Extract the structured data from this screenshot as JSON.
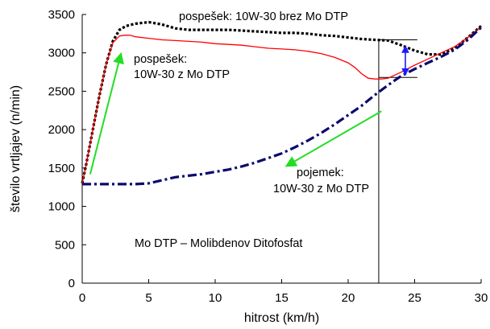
{
  "chart_data": {
    "type": "line",
    "title": "",
    "xlabel": "hitrost (km/h)",
    "ylabel": "število vrtljajev (n/min)",
    "xlim": [
      0,
      30
    ],
    "ylim": [
      0,
      3500
    ],
    "xticks": [
      0,
      5,
      10,
      15,
      20,
      25,
      30
    ],
    "yticks": [
      0,
      500,
      1000,
      1500,
      2000,
      2500,
      3000,
      3500
    ],
    "grid": false,
    "legend": "none",
    "series": [
      {
        "color": "#000000",
        "style": "dotted",
        "x": [
          0,
          0.3,
          0.8,
          1.3,
          1.8,
          2.3,
          2.8,
          3.3,
          4.0,
          5.0,
          6.0,
          7.0,
          8.0,
          9.0,
          10.0,
          11.0,
          12.0,
          13.0,
          14.0,
          15.0,
          16.0,
          17.0,
          18.0,
          19.0,
          20.0,
          21.0,
          22.0,
          23.0,
          24.0,
          25.0,
          26.0,
          27.0,
          28.0,
          29.0,
          30.0
        ],
        "y": [
          1300,
          1550,
          2000,
          2450,
          2850,
          3150,
          3300,
          3350,
          3380,
          3400,
          3370,
          3320,
          3300,
          3300,
          3300,
          3300,
          3290,
          3280,
          3270,
          3260,
          3260,
          3250,
          3230,
          3220,
          3200,
          3180,
          3170,
          3160,
          3100,
          3030,
          2980,
          2980,
          3060,
          3200,
          3350
        ]
      },
      {
        "color": "#ff0000",
        "style": "solid",
        "x": [
          0,
          0.3,
          0.8,
          1.3,
          1.8,
          2.3,
          2.8,
          3.2,
          3.6,
          4.0,
          5.0,
          6.0,
          7.0,
          8.0,
          9.0,
          10.0,
          11.0,
          12.0,
          13.0,
          14.0,
          15.0,
          16.0,
          17.0,
          18.0,
          19.0,
          20.0,
          20.5,
          21.0,
          21.5,
          22.0,
          22.5,
          23.0,
          24.0,
          25.0,
          26.0,
          27.0,
          28.0,
          29.0,
          30.0
        ],
        "y": [
          1300,
          1550,
          2000,
          2450,
          2850,
          3130,
          3220,
          3230,
          3230,
          3210,
          3190,
          3170,
          3160,
          3150,
          3140,
          3120,
          3110,
          3100,
          3080,
          3060,
          3050,
          3040,
          3020,
          2990,
          2940,
          2870,
          2810,
          2730,
          2670,
          2660,
          2660,
          2670,
          2750,
          2840,
          2920,
          3000,
          3080,
          3200,
          3340
        ]
      },
      {
        "color": "#0a0a6e",
        "style": "dashdot",
        "x": [
          0,
          1.0,
          2.0,
          3.0,
          4.0,
          5.0,
          6.0,
          7.0,
          8.0,
          9.0,
          10.0,
          11.0,
          12.0,
          13.0,
          14.0,
          15.0,
          16.0,
          17.0,
          18.0,
          19.0,
          20.0,
          21.0,
          22.0,
          23.0,
          24.0,
          25.0,
          26.0,
          27.0,
          28.0,
          29.0,
          30.0
        ],
        "y": [
          1290,
          1290,
          1290,
          1290,
          1290,
          1300,
          1340,
          1380,
          1400,
          1420,
          1450,
          1480,
          1520,
          1570,
          1630,
          1690,
          1770,
          1860,
          1960,
          2070,
          2190,
          2310,
          2450,
          2580,
          2700,
          2790,
          2870,
          2950,
          3040,
          3170,
          3330
        ]
      }
    ],
    "annotations": [
      {
        "text_lines": [
          "pospešek: 10W-30 brez Mo DTP"
        ]
      },
      {
        "text_lines": [
          "pospešek:",
          "10W-30 z Mo DTP"
        ]
      },
      {
        "text_lines": [
          "pojemek:",
          "10W-30 z Mo DTP"
        ]
      },
      {
        "text_lines": [
          "Mo DTP – Molibdenov Ditofosfat"
        ]
      }
    ],
    "arrows": [
      {
        "from": [
          0.6,
          1420
        ],
        "to": [
          2.9,
          2980
        ],
        "color": "#22dd22"
      },
      {
        "from": [
          22.5,
          2240
        ],
        "to": [
          15.4,
          1530
        ],
        "color": "#22dd22"
      },
      {
        "from": [
          24.3,
          3080
        ],
        "to": [
          24.3,
          2720
        ],
        "color": "#1a1aff",
        "double": true
      }
    ],
    "vline_x": 22.3,
    "hlines": [
      {
        "y": 3170,
        "x_from": 22.3,
        "x_to": 25.2
      },
      {
        "y": 2680,
        "x_from": 22.3,
        "x_to": 25.2
      }
    ]
  }
}
